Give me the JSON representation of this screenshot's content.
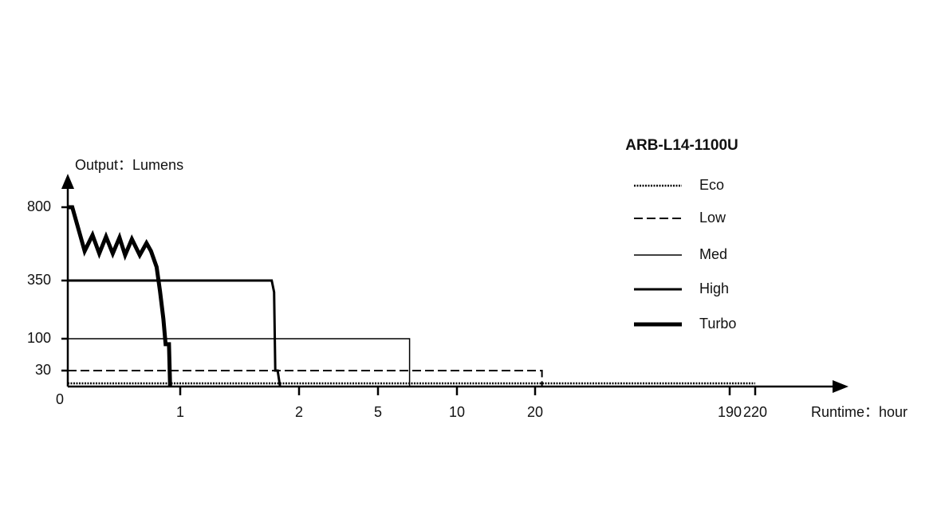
{
  "chart_data": {
    "type": "line",
    "title": "ARB-L14-1100U",
    "y_label": "Output：Lumens",
    "x_label": "Runtime：hour",
    "xlim": [
      0,
      220
    ],
    "xticks": [
      0,
      1,
      2,
      5,
      10,
      20,
      190,
      220
    ],
    "ylim": [
      0,
      800
    ],
    "yticks": [
      30,
      100,
      350,
      800
    ],
    "series": [
      {
        "name": "Eco",
        "color": "#000000",
        "style": "dotted",
        "width": 2.5,
        "x": [
          0,
          220
        ],
        "values": [
          6,
          6
        ]
      },
      {
        "name": "Low",
        "color": "#000000",
        "style": "dashed",
        "width": 2,
        "x": [
          0,
          26,
          26
        ],
        "values": [
          30,
          30,
          0
        ]
      },
      {
        "name": "Med",
        "color": "#000000",
        "style": "solid",
        "width": 1.5,
        "x": [
          0,
          7,
          7
        ],
        "values": [
          100,
          100,
          0
        ]
      },
      {
        "name": "High",
        "color": "#000000",
        "style": "solid",
        "width": 3,
        "x": [
          0,
          1.77,
          1.79,
          1.8,
          1.82,
          1.84
        ],
        "values": [
          350,
          350,
          300,
          30,
          30,
          0
        ]
      },
      {
        "name": "Turbo",
        "color": "#000000",
        "style": "solid",
        "width": 5,
        "x": [
          0,
          0.04,
          0.15,
          0.22,
          0.28,
          0.34,
          0.4,
          0.46,
          0.51,
          0.57,
          0.64,
          0.7,
          0.74,
          0.79,
          0.82,
          0.85,
          0.87,
          0.9,
          0.91
        ],
        "values": [
          800,
          800,
          531,
          629,
          516,
          619,
          516,
          614,
          506,
          604,
          506,
          580,
          531,
          433,
          305,
          186,
          88,
          88,
          0
        ]
      }
    ]
  }
}
